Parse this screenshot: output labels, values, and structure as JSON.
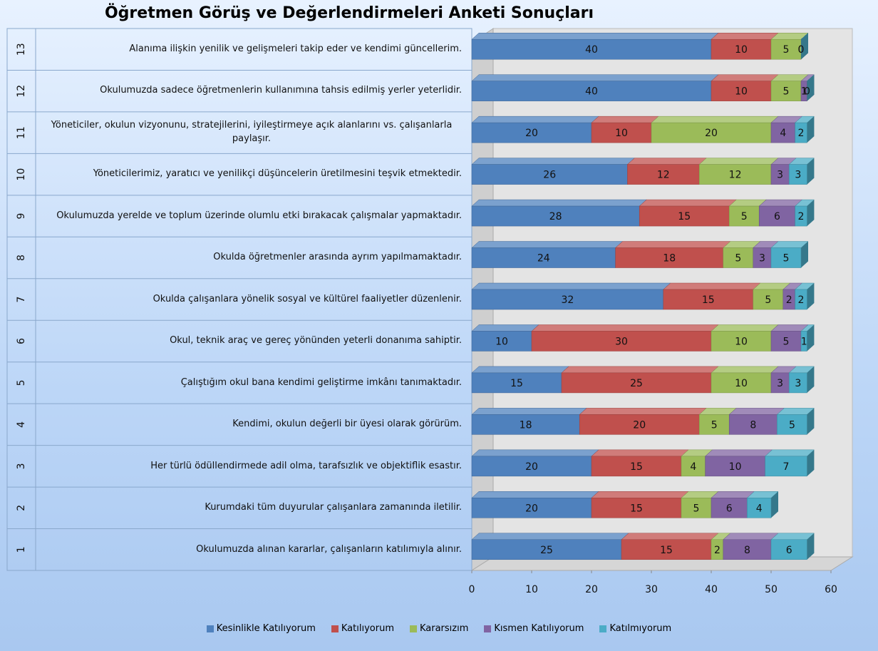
{
  "chart_data": {
    "type": "stacked-bar-horizontal",
    "title": "Öğretmen Görüş ve Değerlendirmeleri Anketi Sonuçları",
    "categories": [
      "1",
      "2",
      "3",
      "4",
      "5",
      "6",
      "7",
      "8",
      "9",
      "10",
      "11",
      "12",
      "13"
    ],
    "category_labels": [
      "Okulumuzda alınan kararlar, çalışanların katılımıyla alınır.",
      "Kurumdaki tüm duyurular çalışanlara zamanında iletilir.",
      "Her türlü ödüllendirmede adil olma, tarafsızlık ve objektiflik esastır.",
      "Kendimi, okulun değerli bir üyesi olarak görürüm.",
      "Çalıştığım okul bana kendimi geliştirme imkânı tanımaktadır.",
      "Okul, teknik araç ve gereç yönünden yeterli donanıma sahiptir.",
      "Okulda çalışanlara yönelik sosyal ve kültürel faaliyetler düzenlenir.",
      "Okulda öğretmenler arasında ayrım yapılmamaktadır.",
      "Okulumuzda yerelde ve toplum üzerinde olumlu etki bırakacak çalışmalar yapmaktadır.",
      "Yöneticilerimiz, yaratıcı ve yenilikçi düşüncelerin üretilmesini teşvik etmektedir.",
      "Yöneticiler, okulun vizyonunu, stratejilerini, iyileştirmeye açık alanlarını vs. çalışanlarla paylaşır.",
      "Okulumuzda sadece öğretmenlerin kullanımına tahsis edilmiş yerler yeterlidir.",
      "Alanıma ilişkin yenilik ve gelişmeleri takip eder ve kendimi güncellerim."
    ],
    "series": [
      {
        "name": "Kesinlikle Katılıyorum",
        "color": "#4f81bd",
        "values": [
          25,
          20,
          20,
          18,
          15,
          10,
          32,
          24,
          28,
          26,
          20,
          40,
          40
        ]
      },
      {
        "name": "Katılıyorum",
        "color": "#c0504d",
        "values": [
          15,
          15,
          15,
          20,
          25,
          30,
          15,
          18,
          15,
          12,
          10,
          10,
          10
        ]
      },
      {
        "name": "Kararsızım",
        "color": "#9bbb59",
        "values": [
          2,
          5,
          4,
          5,
          10,
          10,
          5,
          5,
          5,
          12,
          20,
          5,
          5
        ]
      },
      {
        "name": "Kısmen Katılıyorum",
        "color": "#8064a2",
        "values": [
          8,
          6,
          10,
          8,
          3,
          5,
          2,
          3,
          6,
          3,
          4,
          1,
          0
        ]
      },
      {
        "name": "Katılmıyorum",
        "color": "#4bacc6",
        "values": [
          6,
          4,
          7,
          5,
          3,
          1,
          2,
          5,
          2,
          3,
          2,
          0,
          0
        ]
      }
    ],
    "xlim": [
      0,
      60
    ],
    "xticks": [
      0,
      10,
      20,
      30,
      40,
      50,
      60
    ],
    "grid": false,
    "legend": "bottom"
  }
}
